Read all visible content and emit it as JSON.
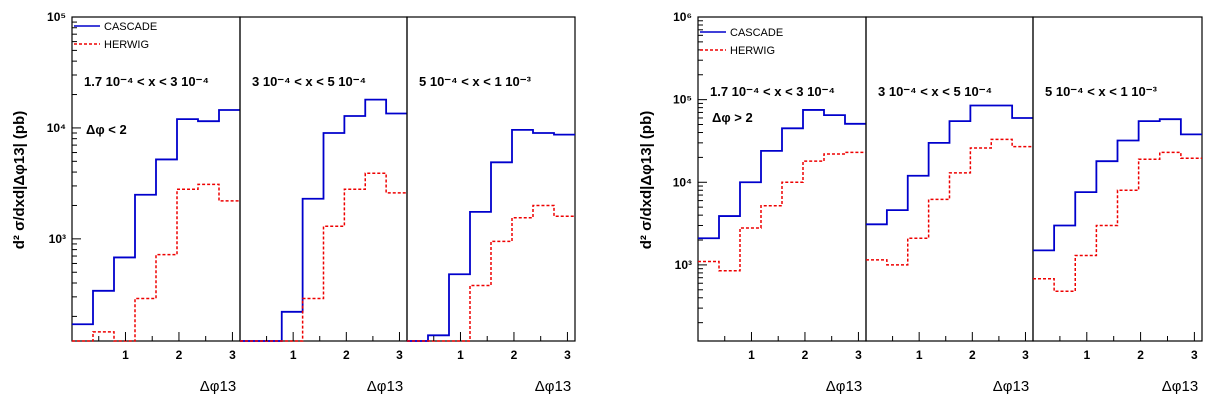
{
  "chart_data": [
    {
      "type": "step",
      "y_label": "d² σ/dxd|Δφ13| (pb)",
      "y_scale": "log",
      "ylim": [
        120,
        100000
      ],
      "y_ticks": [
        {
          "value": 1000,
          "label": "10³"
        },
        {
          "value": 10000,
          "label": "10⁴"
        },
        {
          "value": 100000,
          "label": "10⁵"
        }
      ],
      "x_ticks": [
        "1",
        "2",
        "3"
      ],
      "xlim": [
        0,
        3.1416
      ],
      "x_label": "Δφ13",
      "legend": [
        {
          "name": "CASCADE",
          "color": "#0000cc",
          "style": "solid"
        },
        {
          "name": "HERWIG",
          "color": "#ee0000",
          "style": "dashed"
        }
      ],
      "cut_label": "Δφ < 2",
      "bin_edges": [
        0,
        0.3927,
        0.7854,
        1.1781,
        1.5708,
        1.9635,
        2.3562,
        2.7489,
        3.1416
      ],
      "panels": [
        {
          "title": "1.7 10⁻⁴ < x < 3 10⁻⁴",
          "series": [
            {
              "name": "CASCADE",
              "values": [
                170,
                340,
                680,
                2500,
                5200,
                12000,
                11500,
                14500
              ]
            },
            {
              "name": "HERWIG",
              "values": [
                100,
                145,
                100,
                290,
                720,
                2800,
                3100,
                2200
              ]
            }
          ]
        },
        {
          "title": "3 10⁻⁴ < x < 5 10⁻⁴",
          "series": [
            {
              "name": "CASCADE",
              "values": [
                100,
                110,
                220,
                2300,
                9000,
                12800,
                18000,
                13500
              ]
            },
            {
              "name": "HERWIG",
              "values": [
                100,
                100,
                100,
                290,
                1300,
                2800,
                3900,
                2600
              ]
            }
          ]
        },
        {
          "title": "5 10⁻⁴ < x < 1 10⁻³",
          "series": [
            {
              "name": "CASCADE",
              "values": [
                110,
                135,
                480,
                1750,
                4900,
                9600,
                9000,
                8700
              ]
            },
            {
              "name": "HERWIG",
              "values": [
                100,
                100,
                100,
                380,
                950,
                1550,
                2000,
                1600
              ]
            }
          ]
        }
      ]
    },
    {
      "type": "step",
      "y_label": "d² σ/dxd|Δφ13| (pb)",
      "y_scale": "log",
      "ylim": [
        120,
        1000000
      ],
      "y_ticks": [
        {
          "value": 1000,
          "label": "10³"
        },
        {
          "value": 10000,
          "label": "10⁴"
        },
        {
          "value": 100000,
          "label": "10⁵"
        },
        {
          "value": 1000000,
          "label": "10⁶"
        }
      ],
      "x_ticks": [
        "1",
        "2",
        "3"
      ],
      "xlim": [
        0,
        3.1416
      ],
      "x_label": "Δφ13",
      "legend": [
        {
          "name": "CASCADE",
          "color": "#0000cc",
          "style": "solid"
        },
        {
          "name": "HERWIG",
          "color": "#ee0000",
          "style": "dashed"
        }
      ],
      "cut_label": "Δφ > 2",
      "bin_edges": [
        0,
        0.3927,
        0.7854,
        1.1781,
        1.5708,
        1.9635,
        2.3562,
        2.7489,
        3.1416
      ],
      "panels": [
        {
          "title": "1.7 10⁻⁴ < x < 3 10⁻⁴",
          "series": [
            {
              "name": "CASCADE",
              "values": [
                2100,
                3900,
                10000,
                24000,
                45000,
                75000,
                65000,
                51000
              ]
            },
            {
              "name": "HERWIG",
              "values": [
                1100,
                850,
                2800,
                5200,
                10000,
                18000,
                22000,
                23000
              ]
            }
          ]
        },
        {
          "title": "3 10⁻⁴ < x < 5 10⁻⁴",
          "series": [
            {
              "name": "CASCADE",
              "values": [
                3100,
                4600,
                12000,
                30000,
                55000,
                85000,
                85000,
                60000
              ]
            },
            {
              "name": "HERWIG",
              "values": [
                1150,
                1000,
                2100,
                6200,
                13000,
                26000,
                33000,
                27000
              ]
            }
          ]
        },
        {
          "title": "5 10⁻⁴ < x < 1 10⁻³",
          "series": [
            {
              "name": "CASCADE",
              "values": [
                1500,
                3000,
                7600,
                18000,
                32000,
                55000,
                58000,
                38000
              ]
            },
            {
              "name": "HERWIG",
              "values": [
                680,
                480,
                1300,
                3000,
                8000,
                19000,
                23000,
                19500
              ]
            }
          ]
        }
      ]
    }
  ]
}
